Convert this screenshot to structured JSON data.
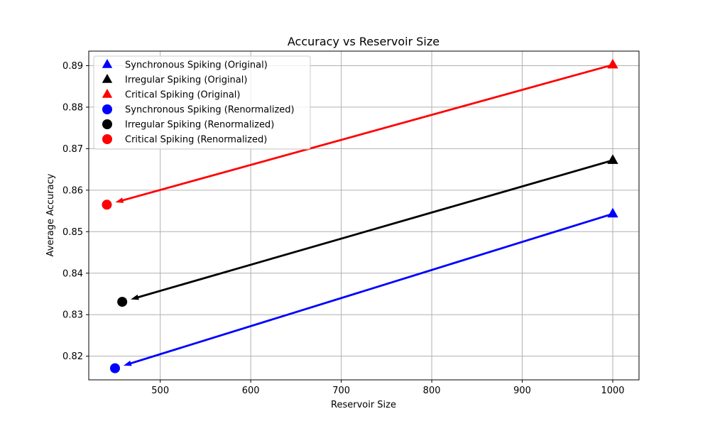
{
  "chart_data": {
    "type": "scatter",
    "title": "Accuracy vs Reservoir Size",
    "xlabel": "Reservoir Size",
    "ylabel": "Average Accuracy",
    "xlim": [
      421,
      1029
    ],
    "ylim": [
      0.8143,
      0.8935
    ],
    "xticks": [
      500,
      600,
      700,
      800,
      900,
      1000
    ],
    "yticks": [
      0.82,
      0.83,
      0.84,
      0.85,
      0.86,
      0.87,
      0.88,
      0.89
    ],
    "grid": true,
    "legend_position": "top-left",
    "series": [
      {
        "name": "Synchronous Spiking (Original)",
        "marker": "triangle",
        "color": "#0000ff",
        "points": [
          {
            "x": 1000,
            "y": 0.8543
          }
        ]
      },
      {
        "name": "Irregular Spiking (Original)",
        "marker": "triangle",
        "color": "#000000",
        "points": [
          {
            "x": 1000,
            "y": 0.8672
          }
        ]
      },
      {
        "name": "Critical Spiking (Original)",
        "marker": "triangle",
        "color": "#ff0000",
        "points": [
          {
            "x": 1000,
            "y": 0.8902
          }
        ]
      },
      {
        "name": "Synchronous Spiking (Renormalized)",
        "marker": "circle",
        "color": "#0000ff",
        "points": [
          {
            "x": 450,
            "y": 0.8171
          }
        ]
      },
      {
        "name": "Irregular Spiking (Renormalized)",
        "marker": "circle",
        "color": "#000000",
        "points": [
          {
            "x": 458,
            "y": 0.8331
          }
        ]
      },
      {
        "name": "Critical Spiking (Renormalized)",
        "marker": "circle",
        "color": "#ff0000",
        "points": [
          {
            "x": 441,
            "y": 0.8565
          }
        ]
      }
    ],
    "arrows": [
      {
        "from": {
          "x": 1000,
          "y": 0.8543
        },
        "to": {
          "x": 450,
          "y": 0.8171
        },
        "color": "#0000ff"
      },
      {
        "from": {
          "x": 1000,
          "y": 0.8672
        },
        "to": {
          "x": 458,
          "y": 0.8331
        },
        "color": "#000000"
      },
      {
        "from": {
          "x": 1000,
          "y": 0.8902
        },
        "to": {
          "x": 441,
          "y": 0.8565
        },
        "color": "#ff0000"
      }
    ]
  }
}
